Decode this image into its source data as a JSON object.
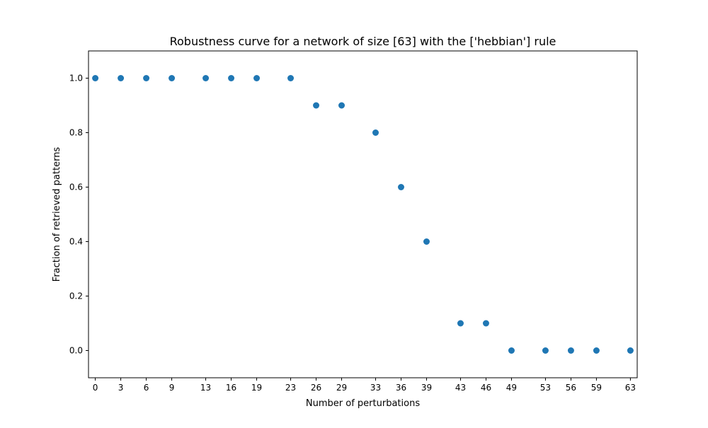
{
  "chart_data": {
    "type": "scatter",
    "title": "Robustness curve for a network of size [63] with the ['hebbian'] rule",
    "xlabel": "Number of perturbations",
    "ylabel": "Fraction of retrieved patterns",
    "xlim": [
      -0.8,
      63.8
    ],
    "ylim": [
      -0.1,
      1.1
    ],
    "grid": false,
    "marker_color": "#1f77b4",
    "x_ticks": [
      "0",
      "3",
      "6",
      "9",
      "13",
      "16",
      "19",
      "23",
      "26",
      "29",
      "33",
      "36",
      "39",
      "43",
      "46",
      "49",
      "53",
      "56",
      "59",
      "63"
    ],
    "y_ticks": [
      "0.0",
      "0.2",
      "0.4",
      "0.6",
      "0.8",
      "1.0"
    ],
    "series": [
      {
        "x": [
          0,
          3,
          6,
          9,
          13,
          16,
          19,
          23,
          26,
          29,
          33,
          36,
          39,
          43,
          46,
          49,
          53,
          56,
          59,
          63
        ],
        "y": [
          1.0,
          1.0,
          1.0,
          1.0,
          1.0,
          1.0,
          1.0,
          1.0,
          0.9,
          0.9,
          0.8,
          0.6,
          0.4,
          0.1,
          0.1,
          0.0,
          0.0,
          0.0,
          0.0,
          0.0
        ]
      }
    ]
  }
}
